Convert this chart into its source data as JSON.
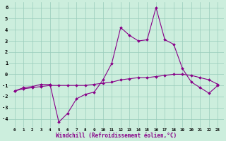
{
  "xlabel": "Windchill (Refroidissement éolien,°C)",
  "x": [
    0,
    1,
    2,
    3,
    4,
    5,
    6,
    7,
    8,
    9,
    10,
    11,
    12,
    13,
    14,
    15,
    16,
    17,
    18,
    19,
    20,
    21,
    22,
    23
  ],
  "line1": [
    -1.5,
    -1.2,
    -1.1,
    -0.9,
    -0.9,
    -4.3,
    -3.5,
    -2.2,
    -1.8,
    -1.6,
    -0.5,
    1.0,
    4.2,
    3.5,
    3.0,
    3.1,
    6.0,
    3.1,
    2.7,
    0.5,
    -0.7,
    -1.2,
    -1.7,
    -1.0
  ],
  "line2": [
    -1.5,
    -1.3,
    -1.2,
    -1.1,
    -1.0,
    -1.0,
    -1.0,
    -1.0,
    -1.0,
    -0.9,
    -0.8,
    -0.7,
    -0.5,
    -0.4,
    -0.3,
    -0.3,
    -0.2,
    -0.1,
    0.0,
    0.0,
    -0.1,
    -0.3,
    -0.5,
    -0.9
  ],
  "line_color": "#880088",
  "bg_color": "#cceedd",
  "grid_color": "#99ccbb",
  "ylim": [
    -4.8,
    6.5
  ],
  "yticks": [
    -4,
    -3,
    -2,
    -1,
    0,
    1,
    2,
    3,
    4,
    5,
    6
  ],
  "xticks": [
    0,
    1,
    2,
    3,
    4,
    5,
    6,
    7,
    8,
    9,
    10,
    11,
    12,
    13,
    14,
    15,
    16,
    17,
    18,
    19,
    20,
    21,
    22,
    23
  ],
  "xlabel_color": "#880088",
  "xlabel_fontsize": 5.5,
  "tick_fontsize_x": 4.2,
  "tick_fontsize_y": 5.0
}
